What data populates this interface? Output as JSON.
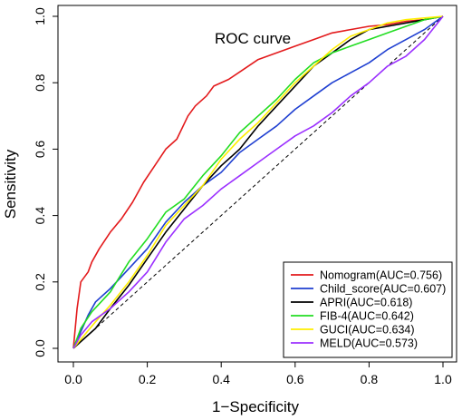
{
  "chart_data": {
    "type": "line",
    "title": "",
    "annotation": "ROC curve",
    "xlabel": "1−Specificity",
    "ylabel": "Sensitivity",
    "xlim": [
      0,
      1
    ],
    "ylim": [
      0,
      1
    ],
    "xticks": [
      "0.0",
      "0.2",
      "0.4",
      "0.6",
      "0.8",
      "1.0"
    ],
    "yticks": [
      "0.0",
      "0.2",
      "0.4",
      "0.6",
      "0.8",
      "1.0"
    ],
    "grid": false,
    "legend_position": "bottom-right",
    "reference_line": {
      "style": "dashed",
      "from": [
        0,
        0
      ],
      "to": [
        1,
        1
      ]
    },
    "series": [
      {
        "name": "Nomogram(AUC=0.756)",
        "color": "#e31a1c",
        "x": [
          0,
          0.01,
          0.02,
          0.04,
          0.05,
          0.07,
          0.1,
          0.13,
          0.16,
          0.19,
          0.22,
          0.25,
          0.28,
          0.31,
          0.33,
          0.36,
          0.38,
          0.42,
          0.46,
          0.5,
          0.55,
          0.6,
          0.65,
          0.7,
          0.75,
          0.8,
          0.85,
          0.9,
          0.95,
          1.0
        ],
        "y": [
          0,
          0.12,
          0.2,
          0.23,
          0.26,
          0.3,
          0.35,
          0.39,
          0.44,
          0.5,
          0.55,
          0.6,
          0.63,
          0.7,
          0.73,
          0.76,
          0.79,
          0.81,
          0.84,
          0.87,
          0.89,
          0.91,
          0.93,
          0.95,
          0.96,
          0.97,
          0.975,
          0.985,
          0.99,
          1.0
        ]
      },
      {
        "name": "Child_score(AUC=0.607)",
        "color": "#1f3fd1",
        "x": [
          0,
          0.02,
          0.04,
          0.06,
          0.1,
          0.15,
          0.2,
          0.25,
          0.3,
          0.35,
          0.4,
          0.45,
          0.5,
          0.55,
          0.6,
          0.65,
          0.7,
          0.75,
          0.8,
          0.85,
          0.9,
          0.95,
          1.0
        ],
        "y": [
          0,
          0.05,
          0.1,
          0.14,
          0.18,
          0.24,
          0.3,
          0.38,
          0.44,
          0.49,
          0.53,
          0.59,
          0.63,
          0.67,
          0.72,
          0.76,
          0.8,
          0.83,
          0.86,
          0.9,
          0.93,
          0.96,
          1.0
        ]
      },
      {
        "name": "APRI(AUC=0.618)",
        "color": "#000000",
        "x": [
          0,
          0.03,
          0.06,
          0.1,
          0.15,
          0.2,
          0.25,
          0.3,
          0.35,
          0.4,
          0.45,
          0.5,
          0.55,
          0.6,
          0.65,
          0.7,
          0.75,
          0.8,
          0.85,
          0.9,
          0.95,
          1.0
        ],
        "y": [
          0,
          0.03,
          0.06,
          0.12,
          0.19,
          0.27,
          0.35,
          0.42,
          0.49,
          0.55,
          0.6,
          0.67,
          0.73,
          0.79,
          0.85,
          0.89,
          0.93,
          0.96,
          0.97,
          0.98,
          0.99,
          1.0
        ]
      },
      {
        "name": "FIB-4(AUC=0.642)",
        "color": "#22dd22",
        "x": [
          0,
          0.02,
          0.05,
          0.1,
          0.15,
          0.2,
          0.25,
          0.3,
          0.35,
          0.4,
          0.45,
          0.5,
          0.55,
          0.6,
          0.65,
          0.7,
          0.75,
          0.8,
          0.85,
          0.9,
          0.95,
          1.0
        ],
        "y": [
          0,
          0.06,
          0.11,
          0.17,
          0.26,
          0.33,
          0.41,
          0.45,
          0.52,
          0.58,
          0.65,
          0.7,
          0.75,
          0.81,
          0.86,
          0.89,
          0.91,
          0.93,
          0.95,
          0.97,
          0.99,
          1.0
        ]
      },
      {
        "name": "GUCI(AUC=0.634)",
        "color": "#ffee00",
        "x": [
          0,
          0.03,
          0.06,
          0.1,
          0.15,
          0.2,
          0.25,
          0.3,
          0.35,
          0.4,
          0.45,
          0.5,
          0.55,
          0.6,
          0.65,
          0.7,
          0.75,
          0.8,
          0.85,
          0.9,
          0.95,
          1.0
        ],
        "y": [
          0,
          0.04,
          0.08,
          0.13,
          0.2,
          0.28,
          0.37,
          0.43,
          0.49,
          0.57,
          0.63,
          0.68,
          0.74,
          0.8,
          0.85,
          0.9,
          0.94,
          0.96,
          0.98,
          0.99,
          0.995,
          1.0
        ]
      },
      {
        "name": "MELD(AUC=0.573)",
        "color": "#9b30ff",
        "x": [
          0,
          0.02,
          0.05,
          0.1,
          0.15,
          0.2,
          0.25,
          0.3,
          0.35,
          0.4,
          0.45,
          0.5,
          0.55,
          0.6,
          0.65,
          0.7,
          0.75,
          0.8,
          0.85,
          0.9,
          0.95,
          1.0
        ],
        "y": [
          0,
          0.04,
          0.08,
          0.12,
          0.17,
          0.23,
          0.32,
          0.39,
          0.43,
          0.48,
          0.52,
          0.56,
          0.6,
          0.64,
          0.67,
          0.71,
          0.76,
          0.8,
          0.85,
          0.88,
          0.93,
          1.0
        ]
      }
    ]
  }
}
